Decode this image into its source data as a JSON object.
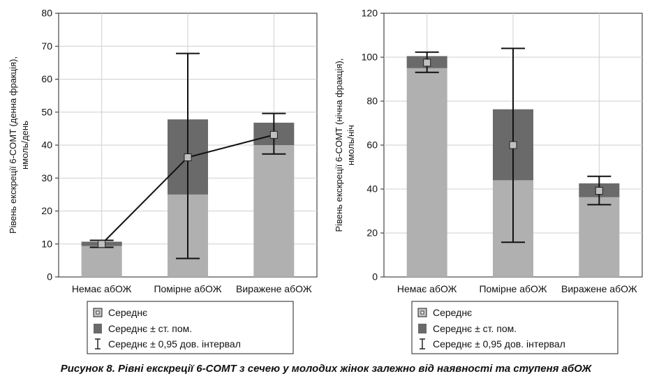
{
  "caption": "Рисунок 8. Рівні екскреції 6-COMT з сечею у молодих жінок залежно від наявності та ступеня абОЖ",
  "legend": {
    "mean": "Середнє",
    "se": "Середнє ± ст. пом.",
    "ci": "Середнє ± 0,95 дов. інтервал"
  },
  "colors": {
    "bar_light": "#b0b0b0",
    "bar_dark": "#6a6a6a",
    "marker_fill": "#c0c0c0",
    "line": "#111111",
    "grid": "#cfcfcf"
  },
  "chart_data": [
    {
      "type": "bar",
      "categories": [
        "Немає абОЖ",
        "Помірне абОЖ",
        "Виражене абОЖ"
      ],
      "ylabel_line1": "Рівень екскреції 6-COMT (денна фракція),",
      "ylabel_line2": "нмоль/день",
      "ylim": [
        0,
        80
      ],
      "yticks": [
        0,
        10,
        20,
        30,
        40,
        50,
        60,
        70,
        80
      ],
      "mean": [
        10.0,
        36.3,
        43.1
      ],
      "se_low": [
        9.4,
        25.0,
        40.0
      ],
      "se_high": [
        10.7,
        47.8,
        46.8
      ],
      "ci_low": [
        9.0,
        5.6,
        37.3
      ],
      "ci_high": [
        11.1,
        67.8,
        49.6
      ],
      "connect_means": true,
      "grid": true,
      "legend_position": "bottom"
    },
    {
      "type": "bar",
      "categories": [
        "Немає абОЖ",
        "Помірне абОЖ",
        "Виражене абОЖ"
      ],
      "ylabel_line1": "Рівень екскреції 6-COMT (нічна фракція),",
      "ylabel_line2": "нмоль/ніч",
      "ylim": [
        0,
        120
      ],
      "yticks": [
        0,
        20,
        40,
        60,
        80,
        100,
        120
      ],
      "mean": [
        97.5,
        60.0,
        39.2
      ],
      "se_low": [
        95.0,
        44.0,
        36.3
      ],
      "se_high": [
        100.5,
        76.3,
        42.6
      ],
      "ci_low": [
        93.1,
        15.8,
        32.9
      ],
      "ci_high": [
        102.3,
        104.0,
        45.8
      ],
      "connect_means": false,
      "grid": true,
      "legend_position": "bottom"
    }
  ]
}
